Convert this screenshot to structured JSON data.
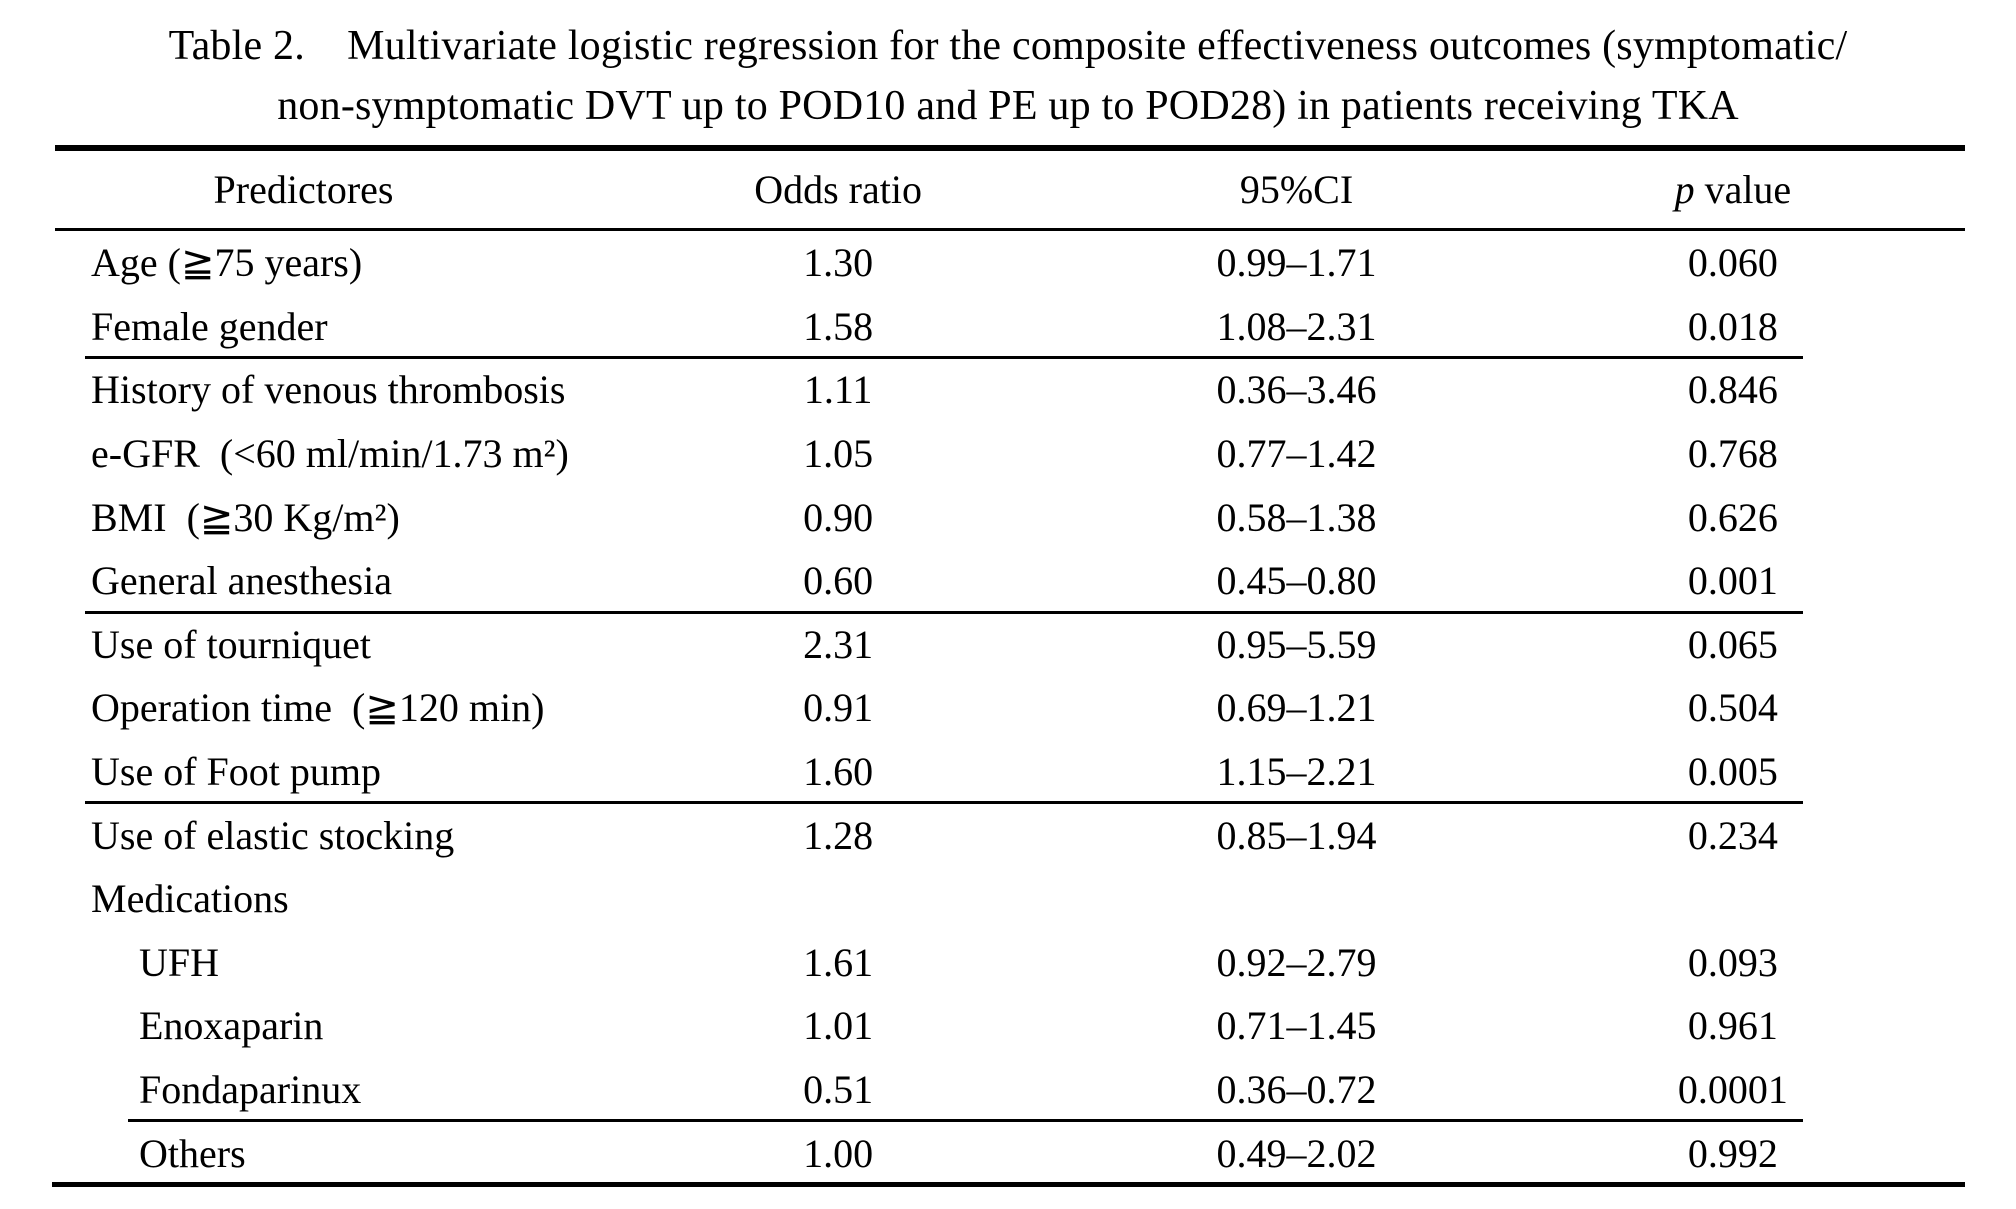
{
  "title": {
    "line1": "Table 2. Multivariate logistic regression for the composite effectiveness outcomes (symptomatic/",
    "line2": "non-symptomatic DVT up to POD10 and PE up to POD28) in patients receiving TKA"
  },
  "colors": {
    "text": "#000000",
    "background": "#ffffff",
    "rule": "#000000"
  },
  "table": {
    "headers": {
      "predictors": "Predictores",
      "odds_ratio": "Odds ratio",
      "ci": "95%CI",
      "p_italic": "p",
      "p_rest": " value"
    },
    "rows": [
      {
        "predictor": "Age (≧75 years)",
        "odds_ratio": "1.30",
        "ci": "0.99–1.71",
        "p": "0.060",
        "indent": false,
        "rule_after": "none"
      },
      {
        "predictor": "Female gender",
        "odds_ratio": "1.58",
        "ci": "1.08–2.31",
        "p": "0.018",
        "indent": false,
        "rule_after": "mid"
      },
      {
        "predictor": "History of venous thrombosis",
        "odds_ratio": "1.11",
        "ci": "0.36–3.46",
        "p": "0.846",
        "indent": false,
        "rule_after": "none"
      },
      {
        "predictor": "e-GFR (<60 ml/min/1.73 m²)",
        "odds_ratio": "1.05",
        "ci": "0.77–1.42",
        "p": "0.768",
        "indent": false,
        "rule_after": "none"
      },
      {
        "predictor": "BMI (≧30 Kg/m²)",
        "odds_ratio": "0.90",
        "ci": "0.58–1.38",
        "p": "0.626",
        "indent": false,
        "rule_after": "none"
      },
      {
        "predictor": "General anesthesia",
        "odds_ratio": "0.60",
        "ci": "0.45–0.80",
        "p": "0.001",
        "indent": false,
        "rule_after": "mid"
      },
      {
        "predictor": "Use of tourniquet",
        "odds_ratio": "2.31",
        "ci": "0.95–5.59",
        "p": "0.065",
        "indent": false,
        "rule_after": "none"
      },
      {
        "predictor": "Operation time (≧120 min)",
        "odds_ratio": "0.91",
        "ci": "0.69–1.21",
        "p": "0.504",
        "indent": false,
        "rule_after": "none"
      },
      {
        "predictor": "Use of Foot pump",
        "odds_ratio": "1.60",
        "ci": "1.15–2.21",
        "p": "0.005",
        "indent": false,
        "rule_after": "mid"
      },
      {
        "predictor": "Use of elastic stocking",
        "odds_ratio": "1.28",
        "ci": "0.85–1.94",
        "p": "0.234",
        "indent": false,
        "rule_after": "none"
      },
      {
        "predictor": "Medications",
        "odds_ratio": "",
        "ci": "",
        "p": "",
        "indent": false,
        "rule_after": "none"
      },
      {
        "predictor": "UFH",
        "odds_ratio": "1.61",
        "ci": "0.92–2.79",
        "p": "0.093",
        "indent": true,
        "rule_after": "none"
      },
      {
        "predictor": "Enoxaparin",
        "odds_ratio": "1.01",
        "ci": "0.71–1.45",
        "p": "0.961",
        "indent": true,
        "rule_after": "none"
      },
      {
        "predictor": "Fondaparinux",
        "odds_ratio": "0.51",
        "ci": "0.36–0.72",
        "p": "0.0001",
        "indent": true,
        "rule_after": "indented"
      },
      {
        "predictor": "Others",
        "odds_ratio": "1.00",
        "ci": "0.49–2.02",
        "p": "0.992",
        "indent": true,
        "rule_after": "none"
      }
    ]
  }
}
